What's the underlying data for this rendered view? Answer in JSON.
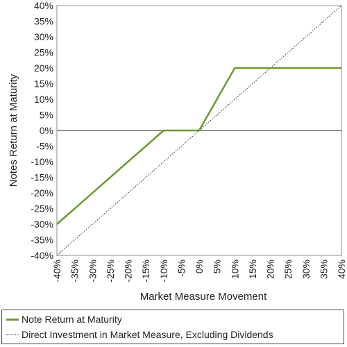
{
  "chart_data": {
    "type": "line",
    "xlabel": "Market Measure Movement",
    "ylabel": "Notes Return at Maturity",
    "xlim": [
      -40,
      40
    ],
    "ylim": [
      -40,
      40
    ],
    "x_ticks": [
      -40,
      -35,
      -30,
      -25,
      -20,
      -15,
      -10,
      -5,
      0,
      5,
      10,
      15,
      20,
      25,
      30,
      35,
      40
    ],
    "y_ticks": [
      40,
      35,
      30,
      25,
      20,
      15,
      10,
      5,
      0,
      -5,
      -10,
      -15,
      -20,
      -25,
      -30,
      -35,
      -40
    ],
    "x_tick_labels": [
      "-40%",
      "-35%",
      "-30%",
      "-25%",
      "-20%",
      "-15%",
      "-10%",
      "-5%",
      "0%",
      "5%",
      "10%",
      "15%",
      "20%",
      "25%",
      "30%",
      "35%",
      "40%"
    ],
    "y_tick_labels": [
      "40%",
      "35%",
      "30%",
      "25%",
      "20%",
      "15%",
      "10%",
      "5%",
      "0%",
      "-5%",
      "-10%",
      "-15%",
      "-20%",
      "-25%",
      "-30%",
      "-35%",
      "-40%"
    ],
    "series": [
      {
        "name": "Note Return at Maturity",
        "color": "#6b9a2e",
        "style": "solid",
        "x": [
          -40,
          -10,
          0,
          10,
          40
        ],
        "y": [
          -30,
          0,
          0,
          20,
          20
        ]
      },
      {
        "name": "Direct Investment in Market Measure, Excluding Dividends",
        "color": "#222222",
        "style": "dotted",
        "x": [
          -40,
          40
        ],
        "y": [
          -40,
          40
        ]
      }
    ],
    "zero_line": true,
    "grid": false,
    "legend_position": "bottom"
  }
}
